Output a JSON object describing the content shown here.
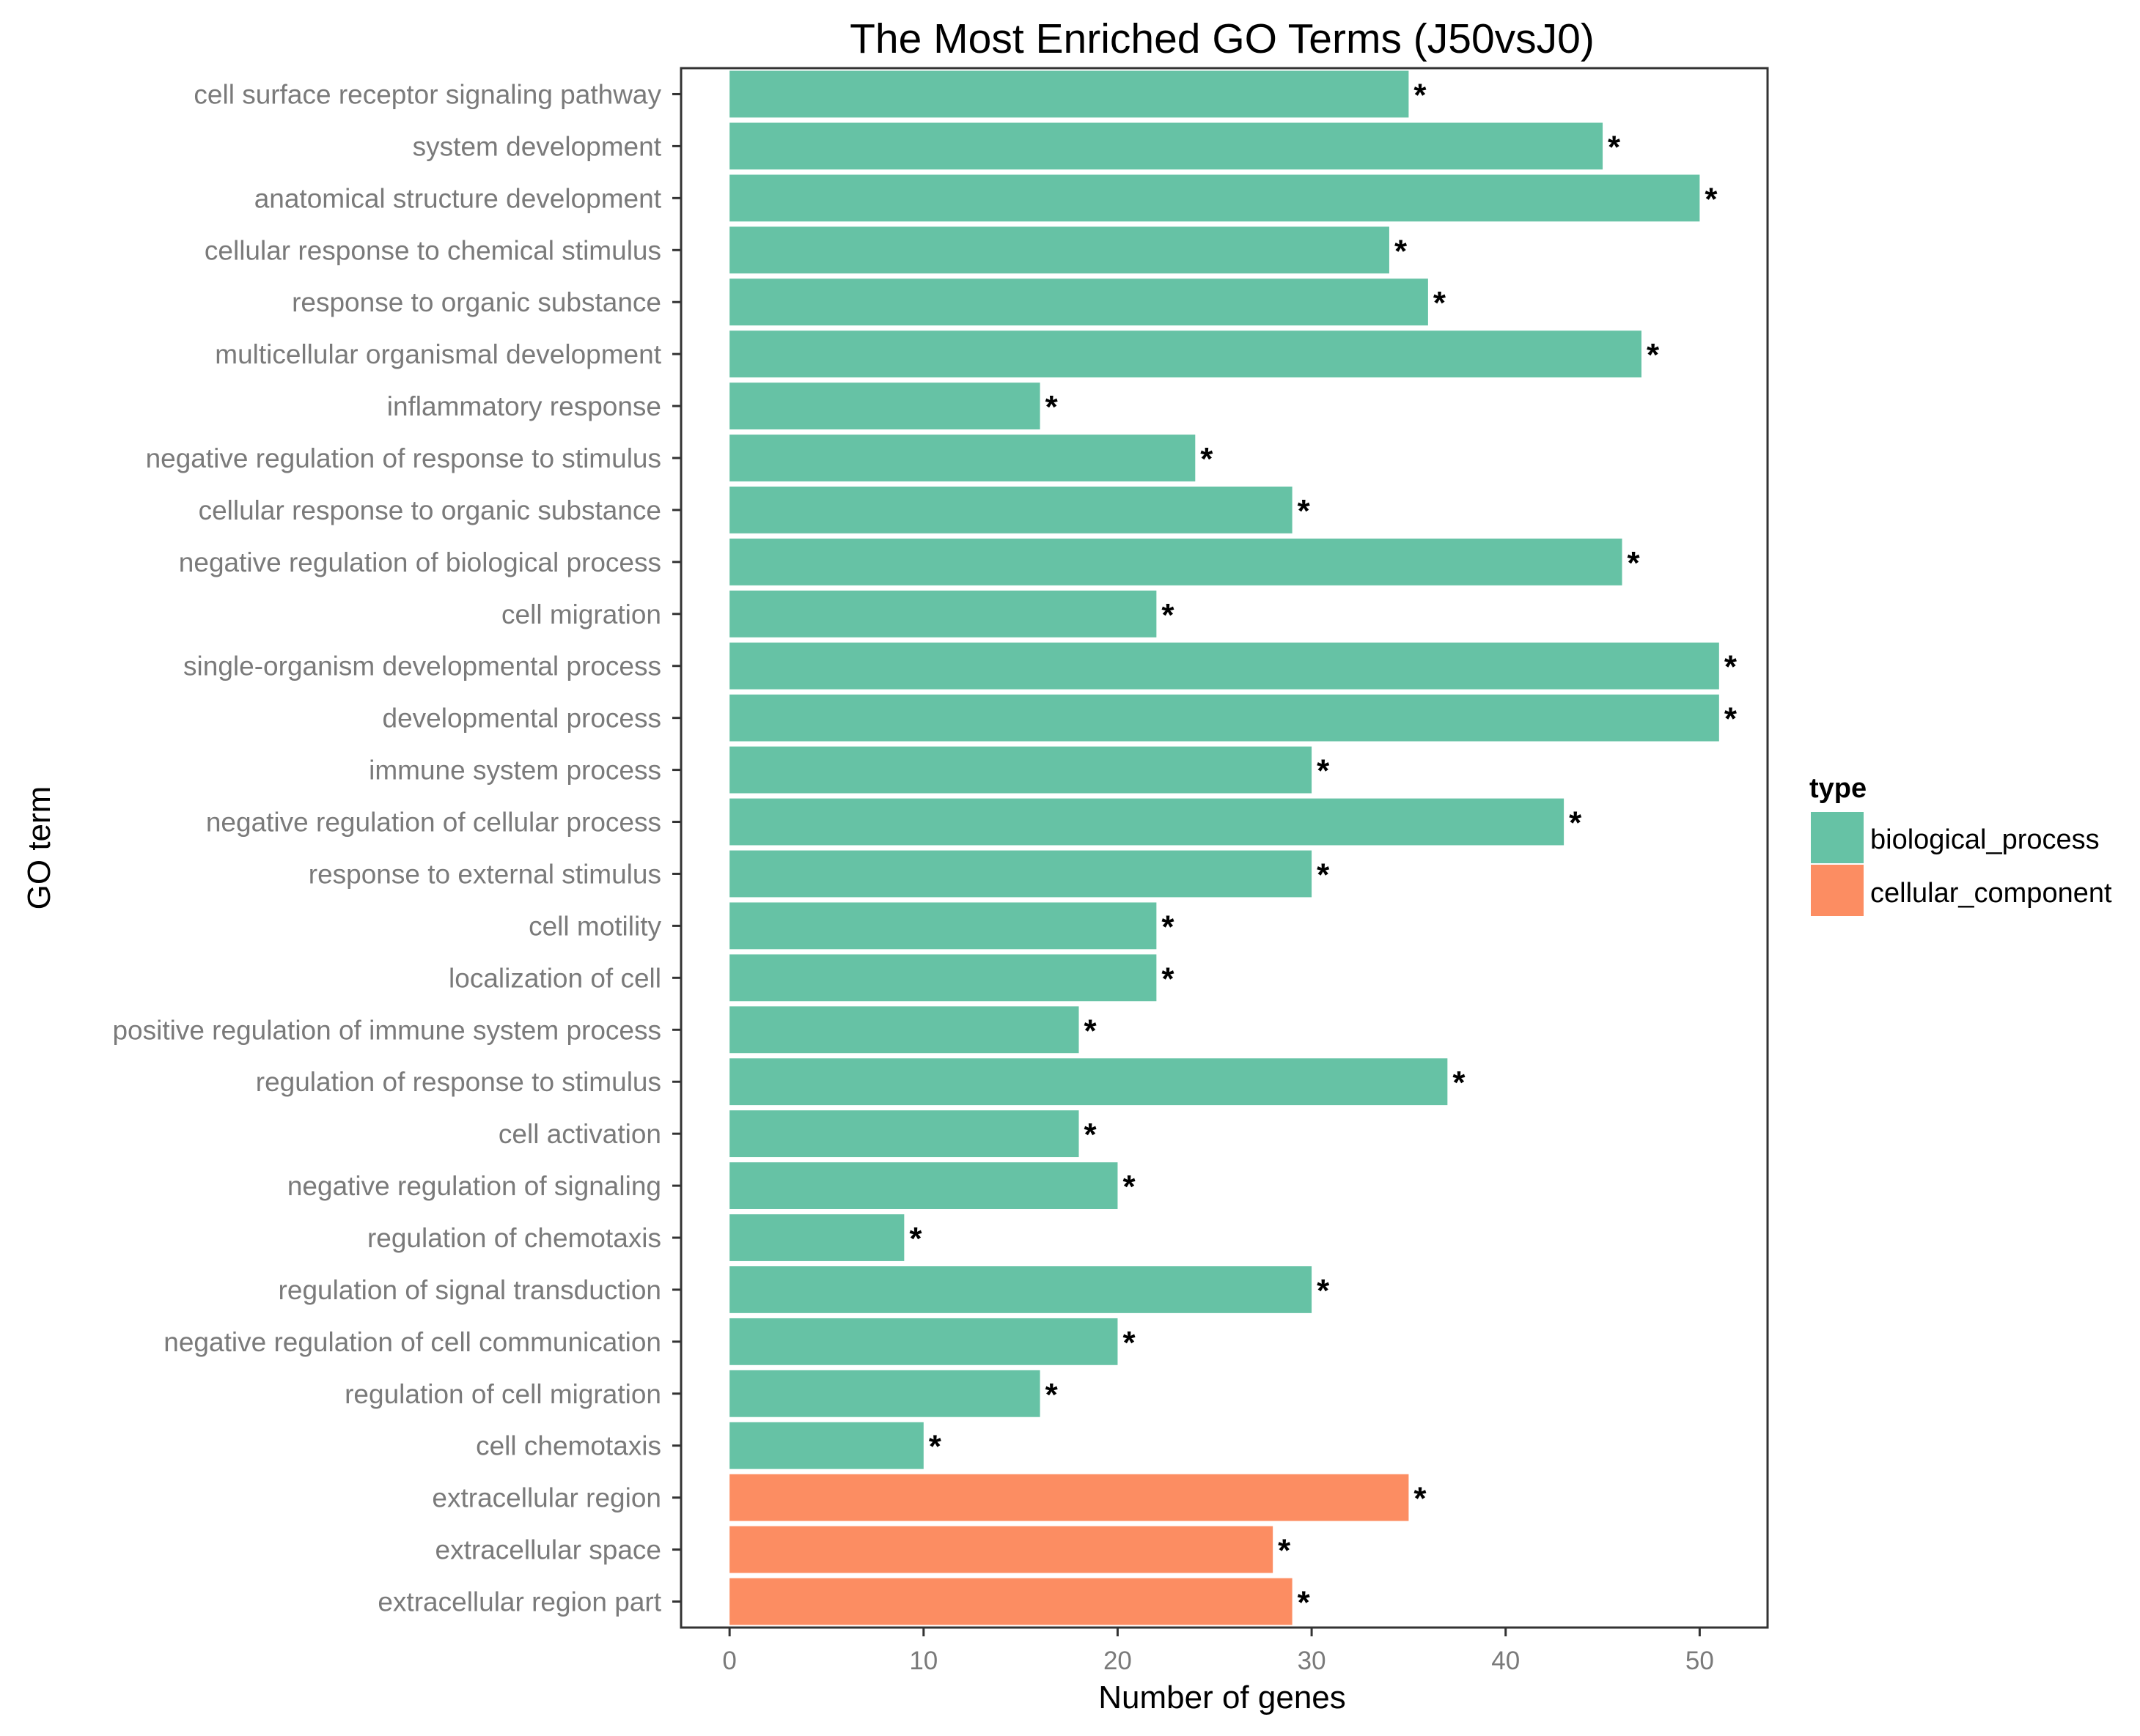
{
  "chart_data": {
    "type": "bar",
    "orientation": "horizontal",
    "title": "The Most Enriched GO Terms (J50vsJ0)",
    "xlabel": "Number of genes",
    "ylabel": "GO term",
    "xlim": [
      -2.5,
      53.5
    ],
    "xticks": [
      0,
      10,
      20,
      30,
      40,
      50
    ],
    "grid": false,
    "legend": {
      "title": "type",
      "position": "right",
      "entries": [
        {
          "label": "biological_process",
          "color": "#66c2a5"
        },
        {
          "label": "cellular_component",
          "color": "#fc8d62"
        }
      ]
    },
    "significance_marker": "*",
    "categories": [
      "cell surface receptor signaling pathway",
      "system development",
      "anatomical structure development",
      "cellular response to chemical stimulus",
      "response to organic substance",
      "multicellular organismal development",
      "inflammatory response",
      "negative regulation of response to stimulus",
      "cellular response to organic substance",
      "negative regulation of biological process",
      "cell migration",
      "single-organism developmental process",
      "developmental process",
      "immune system process",
      "negative regulation of cellular process",
      "response to external stimulus",
      "cell motility",
      "localization of cell",
      "positive regulation of immune system process",
      "regulation of response to stimulus",
      "cell activation",
      "negative regulation of signaling",
      "regulation of chemotaxis",
      "regulation of signal transduction",
      "negative regulation of cell communication",
      "regulation of cell migration",
      "cell chemotaxis",
      "extracellular region",
      "extracellular space",
      "extracellular region part"
    ],
    "values": [
      35,
      45,
      50,
      34,
      36,
      47,
      16,
      24,
      29,
      46,
      22,
      51,
      51,
      30,
      43,
      30,
      22,
      22,
      18,
      37,
      18,
      20,
      9,
      30,
      20,
      16,
      10,
      35,
      28,
      29
    ],
    "types": [
      "biological_process",
      "biological_process",
      "biological_process",
      "biological_process",
      "biological_process",
      "biological_process",
      "biological_process",
      "biological_process",
      "biological_process",
      "biological_process",
      "biological_process",
      "biological_process",
      "biological_process",
      "biological_process",
      "biological_process",
      "biological_process",
      "biological_process",
      "biological_process",
      "biological_process",
      "biological_process",
      "biological_process",
      "biological_process",
      "biological_process",
      "biological_process",
      "biological_process",
      "biological_process",
      "biological_process",
      "cellular_component",
      "cellular_component",
      "cellular_component"
    ]
  }
}
